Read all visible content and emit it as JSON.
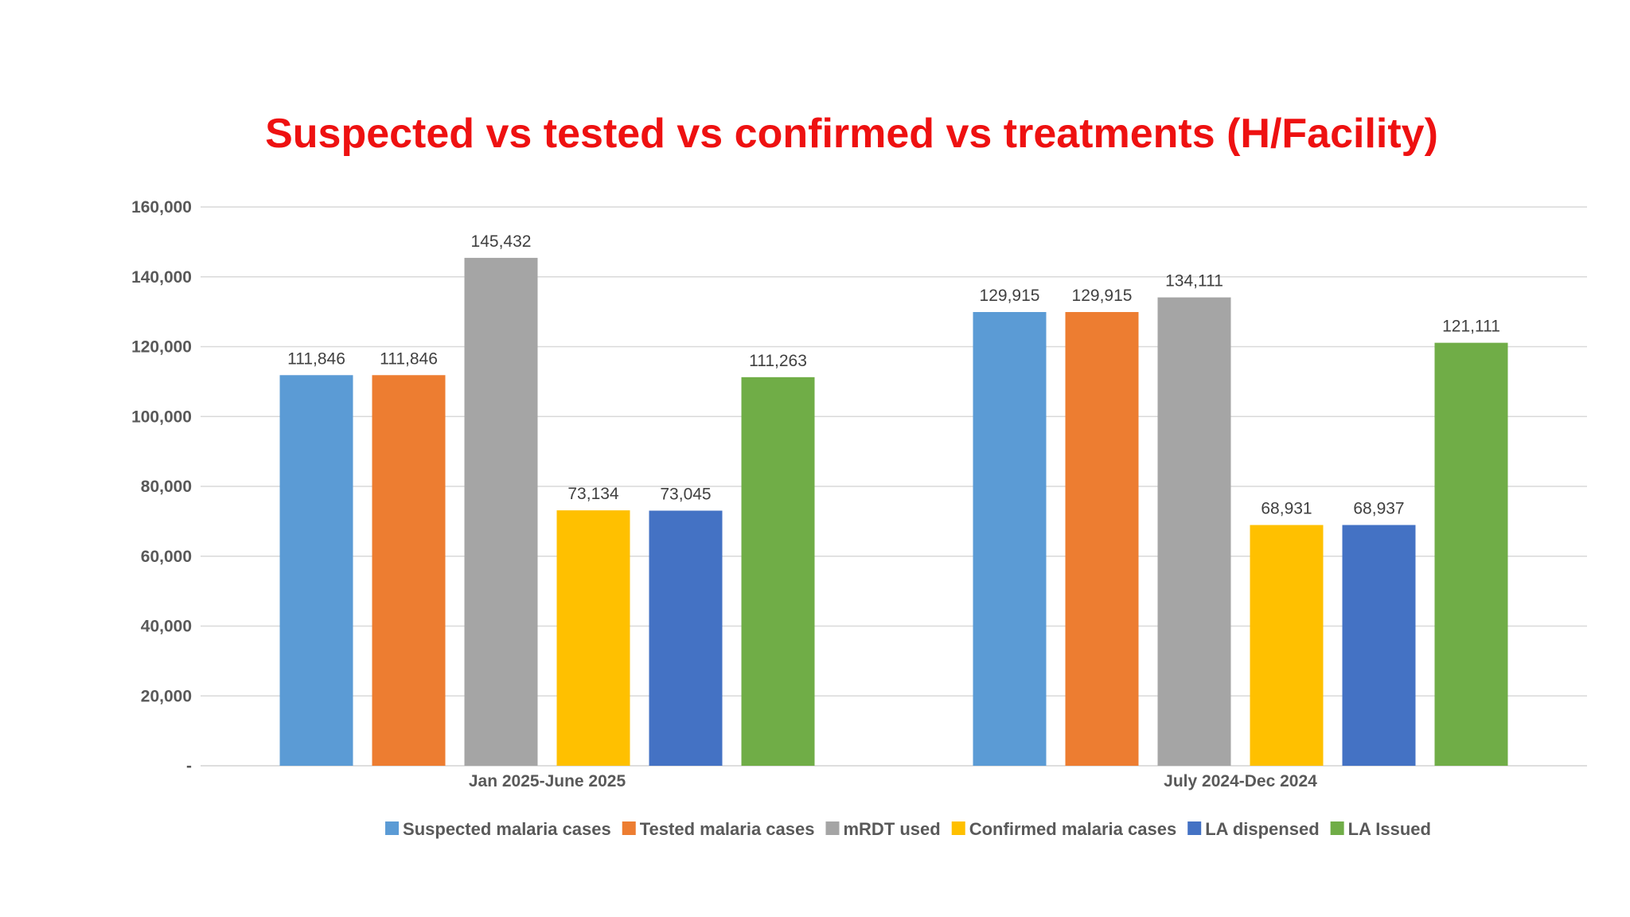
{
  "chart_data": {
    "type": "bar",
    "title": "Suspected vs tested vs confirmed vs treatments (H/Facility)",
    "categories": [
      "Jan 2025-June 2025",
      "July 2024-Dec 2024"
    ],
    "series": [
      {
        "name": "Suspected malaria cases",
        "color": "#5b9bd5",
        "values": [
          111846,
          129915
        ],
        "labels": [
          "111,846",
          "129,915"
        ]
      },
      {
        "name": "Tested malaria cases",
        "color": "#ed7d31",
        "values": [
          111846,
          129915
        ],
        "labels": [
          "111,846",
          "129,915"
        ]
      },
      {
        "name": "mRDT used",
        "color": "#a5a5a5",
        "values": [
          145432,
          134111
        ],
        "labels": [
          "145,432",
          "134,111"
        ]
      },
      {
        "name": "Confirmed malaria cases",
        "color": "#ffc000",
        "values": [
          73134,
          68931
        ],
        "labels": [
          "73,134",
          "68,931"
        ]
      },
      {
        "name": "LA dispensed",
        "color": "#4472c4",
        "values": [
          73045,
          68937
        ],
        "labels": [
          "73,045",
          "68,937"
        ]
      },
      {
        "name": "LA Issued",
        "color": "#70ad47",
        "values": [
          111263,
          121111
        ],
        "labels": [
          "111,263",
          "121,111"
        ]
      }
    ],
    "ylim": [
      0,
      160000
    ],
    "yticks": [
      0,
      20000,
      40000,
      60000,
      80000,
      100000,
      120000,
      140000,
      160000
    ],
    "ytick_labels": [
      "-",
      "20,000",
      "40,000",
      "60,000",
      "80,000",
      "100,000",
      "120,000",
      "140,000",
      "160,000"
    ],
    "grid": true,
    "legend_position": "bottom"
  }
}
